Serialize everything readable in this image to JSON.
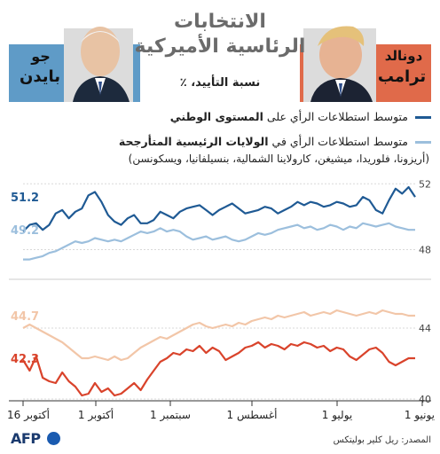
{
  "header": {
    "title_line1": "الانتخابات",
    "title_line2": "الرئاسية الأميركية",
    "subtitle": "نسبة التأييد، ٪"
  },
  "candidates": {
    "left": {
      "first": "جو",
      "last": "بايدن",
      "bg": "#5f9bc7"
    },
    "right": {
      "first": "دونالد",
      "last": "ترامب",
      "bg": "#e06a4a"
    }
  },
  "legend": {
    "national_prefix": "متوسط استطلاعات الرأي على ",
    "national_bold": "المستوى الوطني",
    "swing_prefix": "متوسط استطلاعات الرأي في ",
    "swing_bold": "الولايات الرئيسية المتأرجحة",
    "swing_states": "(أريزونا، فلوريدا، ميشيغن، كارولاينا الشمالية، بنسيلفانيا، ويسكونسن)"
  },
  "footer": {
    "source": "المصدر: ريل كلير بوليتكس",
    "logo": "AFP"
  },
  "colors": {
    "biden_national": "#1f5a94",
    "biden_swing": "#9cbfdd",
    "trump_national": "#d9432b",
    "trump_swing": "#f2c6a8",
    "divider": "#cccccc"
  },
  "chart_data": [
    {
      "type": "line",
      "x_ticks": [
        "16 أكتوبر",
        "1 أكتوبر",
        "1 سبتمبر",
        "1 أغسطس",
        "1 يوليو",
        "1 يونيو"
      ],
      "y_ticks": [
        "52",
        "48"
      ],
      "ylim": [
        47,
        52.5
      ],
      "series": [
        {
          "name": "متوسط استطلاعات الرأي على المستوى الوطني",
          "color": "#1f5a94",
          "end_label": "51.2",
          "values": [
            49.1,
            49.5,
            49.6,
            49.2,
            49.5,
            50.2,
            50.4,
            49.9,
            50.3,
            50.5,
            51.3,
            51.5,
            50.9,
            50.1,
            49.7,
            49.5,
            49.9,
            50.1,
            49.6,
            49.6,
            49.8,
            50.3,
            50.1,
            49.9,
            50.3,
            50.5,
            50.6,
            50.7,
            50.4,
            50.1,
            50.4,
            50.6,
            50.8,
            50.5,
            50.2,
            50.3,
            50.4,
            50.6,
            50.5,
            50.2,
            50.4,
            50.6,
            50.9,
            50.7,
            50.9,
            50.8,
            50.6,
            50.7,
            50.9,
            50.8,
            50.6,
            50.7,
            51.2,
            51.0,
            50.4,
            50.2,
            51.0,
            51.7,
            51.4,
            51.8,
            51.2
          ]
        },
        {
          "name": "متوسط استطلاعات الرأي في الولايات الرئيسية المتأرجحة",
          "color": "#9cbfdd",
          "end_label": "49.2",
          "values": [
            47.4,
            47.4,
            47.5,
            47.6,
            47.8,
            47.9,
            48.1,
            48.3,
            48.5,
            48.4,
            48.5,
            48.7,
            48.6,
            48.5,
            48.6,
            48.5,
            48.7,
            48.9,
            49.1,
            49.0,
            49.1,
            49.3,
            49.1,
            49.2,
            49.1,
            48.8,
            48.6,
            48.7,
            48.8,
            48.6,
            48.7,
            48.8,
            48.6,
            48.5,
            48.6,
            48.8,
            49.0,
            48.9,
            49.0,
            49.2,
            49.3,
            49.4,
            49.5,
            49.3,
            49.4,
            49.2,
            49.3,
            49.5,
            49.4,
            49.2,
            49.4,
            49.3,
            49.6,
            49.5,
            49.4,
            49.5,
            49.6,
            49.4,
            49.3,
            49.2,
            49.2
          ]
        }
      ]
    },
    {
      "type": "line",
      "x_ticks": [
        "16 أكتوبر",
        "1 أكتوبر",
        "1 سبتمبر",
        "1 أغسطس",
        "1 يوليو",
        "1 يونيو"
      ],
      "y_ticks": [
        "44",
        "40"
      ],
      "ylim": [
        40,
        46
      ],
      "series": [
        {
          "name": "متوسط استطلاعات الرأي في الولايات الرئيسية المتأرجحة",
          "color": "#f2c6a8",
          "end_label": "44.7",
          "values": [
            44.0,
            44.2,
            44.0,
            43.8,
            43.6,
            43.4,
            43.2,
            42.9,
            42.6,
            42.3,
            42.3,
            42.4,
            42.3,
            42.2,
            42.4,
            42.2,
            42.3,
            42.6,
            42.9,
            43.1,
            43.3,
            43.5,
            43.4,
            43.6,
            43.8,
            44.0,
            44.2,
            44.3,
            44.1,
            44.0,
            44.1,
            44.2,
            44.1,
            44.3,
            44.2,
            44.4,
            44.5,
            44.6,
            44.5,
            44.7,
            44.6,
            44.7,
            44.8,
            44.9,
            44.7,
            44.8,
            44.9,
            44.8,
            45.0,
            44.9,
            44.8,
            44.7,
            44.8,
            44.9,
            44.8,
            45.0,
            44.9,
            44.8,
            44.8,
            44.7,
            44.7
          ]
        },
        {
          "name": "متوسط استطلاعات الرأي على المستوى الوطني",
          "color": "#d9432b",
          "end_label": "42.3",
          "values": [
            42.2,
            41.6,
            42.4,
            41.2,
            41.0,
            40.9,
            41.5,
            41.0,
            40.7,
            40.2,
            40.3,
            40.9,
            40.4,
            40.6,
            40.2,
            40.3,
            40.6,
            40.9,
            40.5,
            41.1,
            41.6,
            42.1,
            42.3,
            42.6,
            42.5,
            42.8,
            42.7,
            43.0,
            42.6,
            42.9,
            42.7,
            42.2,
            42.4,
            42.6,
            42.9,
            43.0,
            43.2,
            42.9,
            43.1,
            43.0,
            42.8,
            43.1,
            43.0,
            43.2,
            43.1,
            42.9,
            43.0,
            42.7,
            42.9,
            42.8,
            42.4,
            42.2,
            42.5,
            42.8,
            42.9,
            42.6,
            42.1,
            41.9,
            42.1,
            42.3,
            42.3
          ]
        }
      ]
    }
  ]
}
